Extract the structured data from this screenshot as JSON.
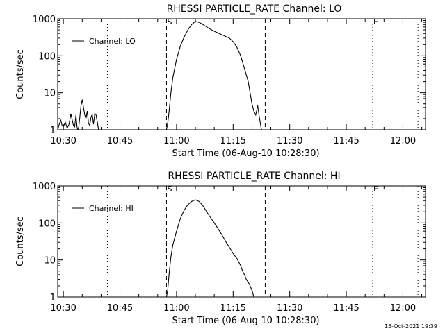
{
  "footer": {
    "timestamp": "15-Oct-2021 19:39"
  },
  "colors": {
    "foreground": "#000000",
    "background": "#ffffff"
  },
  "chart_data": [
    {
      "type": "line",
      "title": "RHESSI PARTICLE_RATE Channel: LO",
      "xlabel": "Start Time (06-Aug-10 10:28:30)",
      "ylabel": "Counts/sec",
      "y_scale": "log",
      "ylim": [
        1,
        1000
      ],
      "xlim": [
        "10:28:30",
        "12:06:00"
      ],
      "x_ticks": [
        "10:30",
        "10:45",
        "11:00",
        "11:15",
        "11:30",
        "11:45",
        "12:00"
      ],
      "y_ticks": [
        "1",
        "10",
        "100",
        "1000"
      ],
      "legend": {
        "label": "Channel: LO",
        "position": "top-left"
      },
      "markers": [
        {
          "label": "S",
          "time": "10:57:20",
          "style": "dashed"
        },
        {
          "label": "E",
          "time": "11:52:00",
          "style": "dotted"
        }
      ],
      "dashed_lines": [
        "10:57:20",
        "11:23:30"
      ],
      "dotted_lines": [
        "10:41:40",
        "11:52:00",
        "12:04:00"
      ],
      "series": [
        {
          "name": "Channel: LO",
          "x": [
            "10:28:30",
            "10:29:00",
            "10:29:20",
            "10:29:40",
            "10:30:00",
            "10:30:30",
            "10:31:00",
            "10:31:30",
            "10:32:00",
            "10:32:40",
            "10:33:00",
            "10:33:20",
            "10:33:40",
            "10:34:00",
            "10:34:20",
            "10:34:40",
            "10:35:00",
            "10:35:20",
            "10:35:40",
            "10:36:00",
            "10:36:20",
            "10:36:40",
            "10:37:00",
            "10:37:20",
            "10:37:40",
            "10:38:00",
            "10:38:20",
            "10:38:40",
            "10:39:00",
            "10:39:20",
            "10:57:20",
            "10:57:40",
            "10:58:00",
            "10:58:30",
            "10:59:00",
            "11:00:00",
            "11:01:00",
            "11:02:00",
            "11:03:00",
            "11:04:00",
            "11:05:00",
            "11:06:00",
            "11:07:00",
            "11:08:00",
            "11:09:00",
            "11:10:00",
            "11:12:00",
            "11:14:00",
            "11:15:00",
            "11:16:00",
            "11:17:00",
            "11:18:00",
            "11:19:00",
            "11:20:00",
            "11:20:30",
            "11:21:00",
            "11:21:30",
            "11:22:00",
            "11:22:30"
          ],
          "y": [
            1,
            1.5,
            1.8,
            1.3,
            1.2,
            1.6,
            1.1,
            1.4,
            2.7,
            1.3,
            1.2,
            2.5,
            1.1,
            1,
            2,
            4.5,
            6.5,
            4,
            2.5,
            2,
            3.2,
            1.5,
            1.3,
            2.2,
            2.6,
            1.4,
            2.8,
            2.5,
            1.6,
            1,
            1,
            1.5,
            3,
            10,
            25,
            80,
            180,
            320,
            500,
            700,
            850,
            800,
            700,
            600,
            520,
            460,
            370,
            300,
            240,
            170,
            100,
            45,
            20,
            5,
            3.2,
            2.5,
            4.5,
            2,
            1
          ]
        }
      ]
    },
    {
      "type": "line",
      "title": "RHESSI PARTICLE_RATE Channel: HI",
      "xlabel": "Start Time (06-Aug-10 10:28:30)",
      "ylabel": "Counts/sec",
      "y_scale": "log",
      "ylim": [
        1,
        1000
      ],
      "xlim": [
        "10:28:30",
        "12:06:00"
      ],
      "x_ticks": [
        "10:30",
        "10:45",
        "11:00",
        "11:15",
        "11:30",
        "11:45",
        "12:00"
      ],
      "y_ticks": [
        "1",
        "10",
        "100",
        "1000"
      ],
      "legend": {
        "label": "Channel: HI",
        "position": "top-left"
      },
      "markers": [
        {
          "label": "S",
          "time": "10:57:20",
          "style": "dashed"
        },
        {
          "label": "E",
          "time": "11:52:00",
          "style": "dotted"
        }
      ],
      "dashed_lines": [
        "10:57:20",
        "11:23:30"
      ],
      "dotted_lines": [
        "10:41:40",
        "11:52:00",
        "12:04:00"
      ],
      "series": [
        {
          "name": "Channel: HI",
          "x": [
            "10:57:20",
            "10:57:40",
            "10:58:00",
            "10:58:30",
            "10:59:00",
            "11:00:00",
            "11:01:00",
            "11:02:00",
            "11:03:00",
            "11:04:00",
            "11:05:00",
            "11:06:00",
            "11:07:00",
            "11:08:00",
            "11:09:00",
            "11:10:00",
            "11:11:00",
            "11:12:00",
            "11:13:00",
            "11:14:00",
            "11:15:00",
            "11:16:00",
            "11:17:00",
            "11:17:30",
            "11:18:00",
            "11:18:30",
            "11:19:00",
            "11:19:30",
            "11:20:00",
            "11:20:30"
          ],
          "y": [
            1,
            1.5,
            4,
            12,
            25,
            60,
            130,
            220,
            310,
            380,
            420,
            380,
            290,
            200,
            140,
            100,
            70,
            48,
            32,
            22,
            15,
            11,
            7,
            5,
            4,
            3,
            2.5,
            2,
            1.5,
            1
          ]
        }
      ]
    }
  ]
}
